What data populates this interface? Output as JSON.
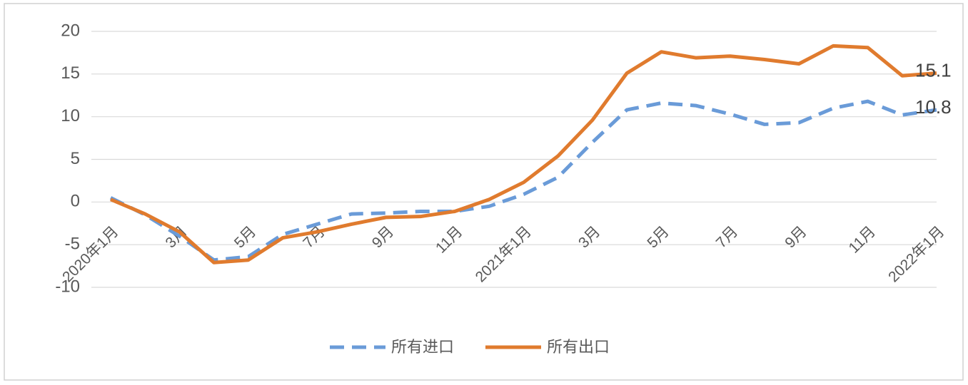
{
  "chart_data": {
    "type": "line",
    "categories": [
      "2020年1月",
      null,
      "3月",
      null,
      "5月",
      null,
      "7月",
      null,
      "9月",
      null,
      "11月",
      null,
      "2021年1月",
      null,
      "3月",
      null,
      "5月",
      null,
      "7月",
      null,
      "9月",
      null,
      "11月",
      null,
      "2022年1月"
    ],
    "series": [
      {
        "name": "所有进口",
        "color": "#6a9bd8",
        "dash": true,
        "values": [
          0.5,
          -1.5,
          -4.0,
          -6.8,
          -6.4,
          -3.8,
          -2.6,
          -1.4,
          -1.3,
          -1.1,
          -1.1,
          -0.5,
          0.9,
          2.9,
          7.0,
          10.8,
          11.6,
          11.3,
          10.3,
          9.1,
          9.3,
          11.0,
          11.8,
          10.2,
          10.8
        ]
      },
      {
        "name": "所有出口",
        "color": "#e07b2e",
        "dash": false,
        "values": [
          0.3,
          -1.4,
          -3.5,
          -7.1,
          -6.8,
          -4.2,
          -3.5,
          -2.6,
          -1.8,
          -1.7,
          -1.1,
          0.3,
          2.3,
          5.4,
          9.6,
          15.1,
          17.6,
          16.9,
          17.1,
          16.7,
          16.2,
          18.3,
          18.1,
          14.8,
          15.1
        ]
      }
    ],
    "ylim": [
      -10,
      20
    ],
    "yticks": [
      -10,
      -5,
      0,
      5,
      10,
      15,
      20
    ],
    "grid": true,
    "legend": "bottom"
  }
}
